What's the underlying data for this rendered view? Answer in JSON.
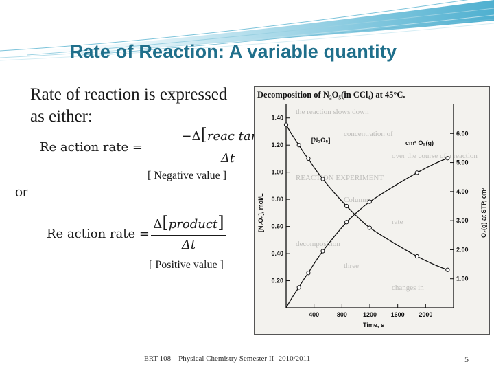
{
  "slide": {
    "title": "Rate of Reaction: A variable quantity",
    "bullet_glyph": "",
    "bullet_line1": "Rate of reaction is expressed",
    "bullet_line2": "as either:",
    "or_text": "or",
    "formula1": {
      "lhs": "Re action rate =",
      "minus": "−",
      "delta_num": "Δ",
      "numerator": "reac tan t",
      "denominator": "Δt"
    },
    "formula2": {
      "lhs": "Re action rate =",
      "delta_num": "Δ",
      "numerator": "product",
      "denominator": "Δt"
    },
    "negative_note": "[ Negative value ]",
    "positive_note": "[ Positive value ]",
    "footer": "ERT 108 – Physical Chemistry Semester II- 2010/2011",
    "page_number": "5",
    "accent_color": "#1f6f8b"
  },
  "chart_data": {
    "type": "line",
    "title": "Decomposition of N₂O₅(in CCl₄) at 45°C.",
    "xlabel": "Time, s",
    "ylabel_left": "[N₂O₅], mol/L",
    "ylabel_right": "O₂(g) at STP, cm³",
    "x_ticks": [
      400,
      800,
      1200,
      1600,
      2000
    ],
    "y_left_ticks": [
      "0.20",
      "0.40",
      "0.60",
      "0.80",
      "1.00",
      "1.20",
      "1.40"
    ],
    "y_right_ticks": [
      "1.00",
      "2.00",
      "3.00",
      "4.00",
      "5.00",
      "6.00"
    ],
    "xlim": [
      0,
      2400
    ],
    "ylim_left": [
      0,
      1.5
    ],
    "ylim_right": [
      0,
      7.0
    ],
    "series": [
      {
        "name": "[N₂O₅]",
        "axis": "left",
        "x": [
          0,
          184,
          319,
          526,
          867,
          1198,
          1877,
          2315
        ],
        "y": [
          1.35,
          1.2,
          1.1,
          0.95,
          0.75,
          0.59,
          0.38,
          0.28
        ]
      },
      {
        "name": "cm³ O₂(g)",
        "axis": "right",
        "x": [
          0,
          184,
          319,
          526,
          867,
          1198,
          1877,
          2315
        ],
        "y": [
          0.0,
          0.7,
          1.2,
          1.95,
          2.95,
          3.65,
          4.65,
          5.15
        ]
      }
    ],
    "background_words": [
      "the reaction slows down",
      "concentration of",
      "over the course of a reaction",
      "REACTION EXPERIMENT",
      "Columns",
      "rate",
      "decomposition",
      "three",
      "changes in"
    ],
    "grid": false,
    "legend": "inline labels"
  }
}
